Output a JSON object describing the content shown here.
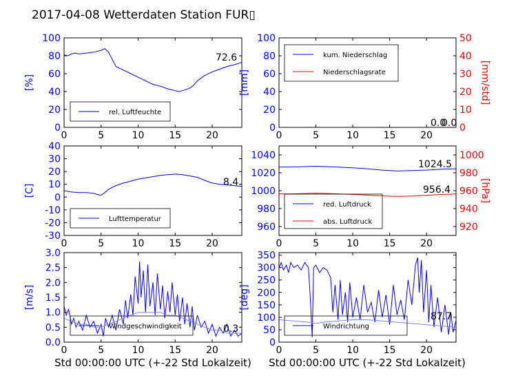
{
  "title": "2017-04-08 Wetterdaten Station FUR▯",
  "colors": {
    "blue": "#0000ff",
    "red": "#ff0000",
    "black": "#000000",
    "lightblue": "#8080ff"
  },
  "xlabel": "Std 00:00:00 UTC (+-22 Std Lokalzeit)",
  "chart_data": [
    {
      "type": "line",
      "x_ticks": [
        0,
        5,
        10,
        15,
        20
      ],
      "xlim": [
        0,
        24
      ],
      "ylabel": "[%]",
      "ylim": [
        0,
        100
      ],
      "y_ticks": [
        0,
        20,
        40,
        60,
        80,
        100
      ],
      "last_value_label": "72.6",
      "series": [
        {
          "name": "rel. Luftfeuchte",
          "color": "#0000ff",
          "x": [
            0,
            0.5,
            1,
            1.5,
            2,
            3,
            4,
            5,
            5.5,
            6,
            6.5,
            7,
            7.5,
            8,
            9,
            10,
            11,
            12,
            13,
            14,
            14.5,
            15,
            15.5,
            16,
            17,
            17.5,
            18,
            19,
            20,
            21,
            22,
            23,
            24
          ],
          "y": [
            81,
            80,
            82,
            83,
            82,
            83,
            84,
            86,
            88,
            84,
            76,
            68,
            66,
            64,
            60,
            56,
            52,
            48,
            46,
            43,
            42,
            41,
            40,
            41,
            44,
            47,
            52,
            58,
            62,
            65,
            68,
            70,
            72.6
          ]
        }
      ]
    },
    {
      "type": "line",
      "x_ticks": [
        0,
        5,
        10,
        15,
        20
      ],
      "xlim": [
        0,
        24
      ],
      "ylabel": "[mm]",
      "ylim": [
        0,
        100
      ],
      "y_ticks": [
        0,
        20,
        40,
        60,
        80,
        100
      ],
      "ylabel_right": "[mm/std]",
      "ylim_right": [
        0,
        50
      ],
      "y_ticks_right": [
        0,
        10,
        20,
        30,
        40,
        50
      ],
      "last_value_label": "0.0",
      "last_value_label_2": "0.0",
      "series": [
        {
          "name": "kum. Niederschlag",
          "color": "#0000ff",
          "x": [
            0,
            24
          ],
          "y": [
            0,
            0
          ]
        },
        {
          "name": "Niederschlagsrate",
          "color": "#ff0000",
          "axis": "right",
          "x": [
            0,
            24
          ],
          "y": [
            0,
            0
          ]
        }
      ]
    },
    {
      "type": "line",
      "x_ticks": [
        0,
        5,
        10,
        15,
        20
      ],
      "xlim": [
        0,
        24
      ],
      "ylabel": "[C]",
      "ylim": [
        -30,
        40
      ],
      "y_ticks": [
        -30,
        -20,
        -10,
        0,
        10,
        20,
        30,
        40
      ],
      "last_value_label": "8.4",
      "series": [
        {
          "name": "Lufttemperatur",
          "color": "#0000ff",
          "x": [
            0,
            1,
            2,
            3,
            4,
            4.5,
            5,
            5.5,
            6,
            7,
            8,
            9,
            10,
            11,
            12,
            13,
            14,
            15,
            16,
            17,
            18,
            19,
            20,
            21,
            22,
            23,
            24
          ],
          "y": [
            5,
            4,
            3.5,
            3.5,
            3,
            2,
            1.5,
            3.5,
            6,
            9,
            11,
            12.5,
            14,
            15,
            16,
            17,
            17.5,
            18,
            17.5,
            16.5,
            15.5,
            13,
            11,
            10,
            9.5,
            9,
            8.4
          ]
        }
      ]
    },
    {
      "type": "line",
      "x_ticks": [
        0,
        5,
        10,
        15,
        20
      ],
      "xlim": [
        0,
        24
      ],
      "ylabel": "",
      "ylim": [
        950,
        1050
      ],
      "y_ticks": [
        960,
        980,
        1000,
        1020,
        1040
      ],
      "ylabel_right": "[hPa]",
      "ylim_right": [
        910,
        1010
      ],
      "y_ticks_right": [
        920,
        940,
        960,
        980,
        1000
      ],
      "last_value_label": "1024.5",
      "last_value_label_2": "956.4",
      "series": [
        {
          "name": "red. Luftdruck",
          "color": "#0000ff",
          "x": [
            0,
            2,
            4,
            5,
            6,
            8,
            10,
            12,
            14,
            16,
            18,
            20,
            22,
            24
          ],
          "y": [
            1026.5,
            1026.5,
            1027,
            1027.3,
            1027,
            1026.3,
            1025.5,
            1024.5,
            1023,
            1022,
            1022.5,
            1023,
            1024,
            1024.5
          ]
        },
        {
          "name": "abs. Luftdruck",
          "color": "#ff0000",
          "axis": "right",
          "x": [
            0,
            2,
            4,
            5,
            6,
            8,
            10,
            12,
            14,
            16,
            18,
            20,
            22,
            24
          ],
          "y": [
            956.5,
            956.5,
            957,
            957.2,
            957,
            956.5,
            955.8,
            955,
            954.2,
            953.5,
            954,
            954.8,
            955.8,
            956.4
          ]
        }
      ]
    },
    {
      "type": "line",
      "x_ticks": [
        0,
        5,
        10,
        15,
        20
      ],
      "xlim": [
        0,
        24
      ],
      "ylabel": "[m/s]",
      "ylim": [
        0,
        3
      ],
      "y_ticks": [
        0.0,
        0.5,
        1.0,
        1.5,
        2.0,
        2.5,
        3.0
      ],
      "last_value_label": "0.3",
      "series": [
        {
          "name": "Windgeschwindigkeit",
          "color": "#0000ff",
          "x": [
            0,
            0.3,
            0.6,
            1,
            1.3,
            1.6,
            2,
            2.5,
            3,
            3.5,
            4,
            4.5,
            5,
            5.3,
            5.6,
            6,
            6.5,
            7,
            7.5,
            8,
            8.3,
            8.6,
            9,
            9.3,
            9.6,
            10,
            10.2,
            10.4,
            10.7,
            11,
            11.3,
            11.6,
            12,
            12.3,
            12.6,
            13,
            13.3,
            13.6,
            14,
            14.3,
            14.6,
            15,
            15.3,
            15.6,
            16,
            16.3,
            16.6,
            17,
            17.3,
            17.6,
            18,
            18.5,
            19,
            19.5,
            20,
            20.5,
            21,
            21.5,
            22,
            22.5,
            23,
            23.5,
            24
          ],
          "y": [
            1.2,
            0.9,
            1.1,
            0.6,
            0.8,
            0.5,
            0.7,
            0.4,
            0.9,
            0.5,
            0.7,
            0.3,
            0.6,
            0.2,
            0.8,
            0.5,
            0.9,
            0.4,
            1.1,
            0.6,
            1.4,
            0.8,
            1.6,
            0.9,
            2.2,
            1.3,
            2.7,
            1.5,
            2.4,
            1.0,
            2.6,
            1.2,
            2.0,
            0.9,
            2.3,
            1.1,
            1.9,
            0.8,
            1.7,
            1.0,
            2.0,
            0.9,
            1.6,
            0.7,
            1.5,
            0.6,
            1.3,
            0.5,
            1.2,
            0.4,
            0.9,
            0.5,
            0.7,
            0.3,
            0.6,
            0.2,
            0.5,
            0.3,
            0.6,
            0.2,
            0.4,
            0.2,
            0.3
          ]
        },
        {
          "name": "",
          "color": "#8080ff",
          "x": [
            0,
            1,
            2,
            3,
            4,
            5,
            6,
            7,
            8,
            9,
            10,
            11,
            12,
            13,
            14,
            15,
            16,
            17,
            18,
            19,
            20,
            21,
            22,
            23,
            24
          ],
          "y": [
            0.8,
            0.7,
            0.6,
            0.6,
            0.5,
            0.5,
            0.6,
            0.7,
            0.8,
            0.9,
            1.0,
            1.0,
            1.0,
            1.0,
            0.9,
            0.9,
            0.8,
            0.7,
            0.6,
            0.5,
            0.4,
            0.4,
            0.3,
            0.3,
            0.3
          ]
        }
      ]
    },
    {
      "type": "line",
      "x_ticks": [
        0,
        5,
        10,
        15,
        20
      ],
      "xlim": [
        0,
        24
      ],
      "ylabel": "[deg]",
      "ylim": [
        0,
        360
      ],
      "y_ticks": [
        0,
        50,
        100,
        150,
        200,
        250,
        300,
        350
      ],
      "last_value_label": "87.7",
      "series": [
        {
          "name": "Windrichtung",
          "color": "#0000ff",
          "x": [
            0,
            0.3,
            0.6,
            1,
            1.3,
            1.6,
            2,
            2.5,
            3,
            3.5,
            4,
            4.3,
            4.5,
            4.7,
            5,
            5.5,
            6,
            6.5,
            7,
            7.3,
            7.6,
            8,
            8.3,
            8.6,
            9,
            9.3,
            9.6,
            10,
            10.5,
            11,
            11.5,
            12,
            12.5,
            13,
            13.5,
            14,
            14.5,
            15,
            15.5,
            16,
            16.5,
            17,
            17.5,
            18,
            18.5,
            18.8,
            19,
            19.3,
            19.6,
            20,
            20.3,
            20.6,
            21,
            21.5,
            22,
            22.5,
            23,
            23.3,
            23.6,
            24
          ],
          "y": [
            300,
            320,
            290,
            310,
            280,
            320,
            300,
            310,
            290,
            320,
            300,
            150,
            20,
            300,
            310,
            280,
            300,
            290,
            260,
            120,
            230,
            90,
            250,
            110,
            200,
            80,
            240,
            100,
            180,
            90,
            230,
            120,
            160,
            80,
            210,
            100,
            190,
            70,
            230,
            110,
            170,
            90,
            250,
            150,
            310,
            340,
            200,
            330,
            120,
            290,
            80,
            230,
            60,
            180,
            40,
            150,
            30,
            120,
            40,
            87.7
          ]
        },
        {
          "name": "",
          "color": "#8080ff",
          "x": [
            0,
            2,
            4,
            5,
            6,
            8,
            10,
            12,
            14,
            16,
            18,
            20,
            22,
            24
          ],
          "y": [
            90,
            85,
            80,
            75,
            80,
            85,
            90,
            90,
            85,
            80,
            75,
            70,
            65,
            60
          ]
        }
      ]
    }
  ]
}
